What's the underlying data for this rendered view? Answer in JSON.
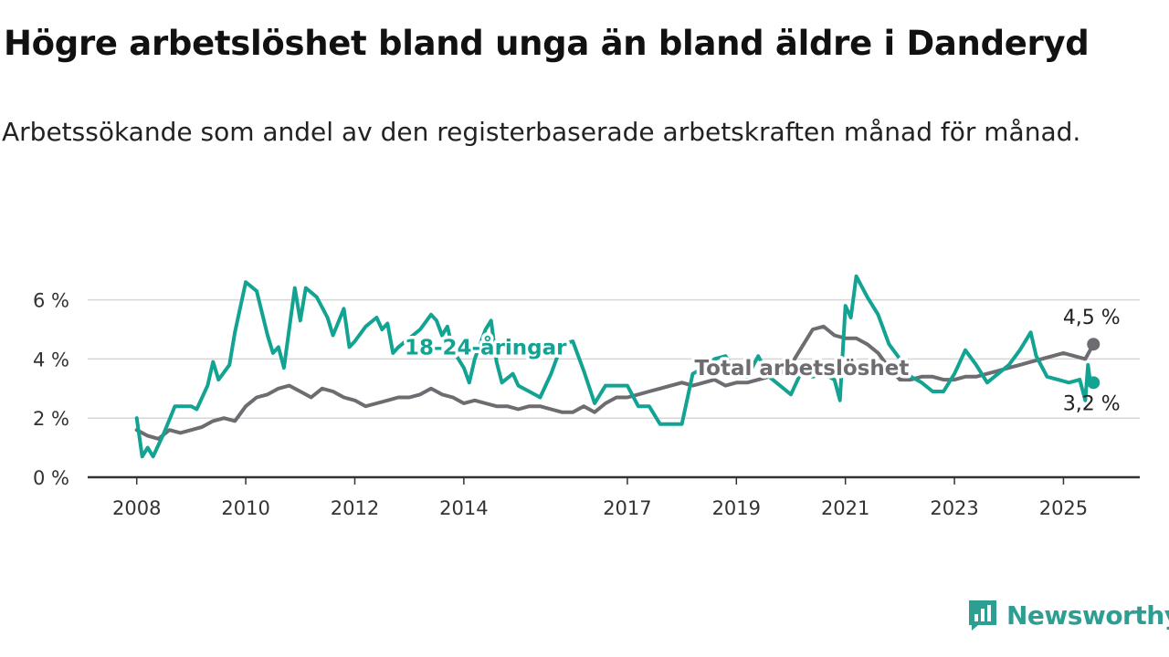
{
  "title": "Högre arbetslöshet bland unga än bland äldre i Danderyd",
  "subtitle": "Arbetssökande som andel av den registerbaserade arbetskraften månad för månad.",
  "brand": {
    "name": "Newsworthy",
    "icon": "newsworthy-logo-icon",
    "color": "#2e9e93"
  },
  "chart_data": {
    "type": "line",
    "title": "Högre arbetslöshet bland unga än bland äldre i Danderyd",
    "subtitle": "Arbetssökande som andel av den registerbaserade arbetskraften månad för månad.",
    "xlabel": "",
    "ylabel": "",
    "x_ticks": [
      {
        "label": "2008",
        "x": 2008.0
      },
      {
        "label": "2010",
        "x": 2010.0
      },
      {
        "label": "2012",
        "x": 2012.0
      },
      {
        "label": "2014",
        "x": 2014.0
      },
      {
        "label": "2017",
        "x": 2017.0
      },
      {
        "label": "2019",
        "x": 2019.0
      },
      {
        "label": "2021",
        "x": 2021.0
      },
      {
        "label": "2023",
        "x": 2023.0
      },
      {
        "label": "2025",
        "x": 2025.0
      }
    ],
    "xlim": [
      2007.1,
      2026.4
    ],
    "y_ticks": [
      {
        "label": "0 %",
        "value": 0
      },
      {
        "label": "2 %",
        "value": 2
      },
      {
        "label": "4 %",
        "value": 4
      },
      {
        "label": "6 %",
        "value": 6
      }
    ],
    "ylim": [
      0,
      7.5
    ],
    "grid": true,
    "series": [
      {
        "name": "Total arbetslöshet",
        "color": "#6e6b71",
        "label_at": [
          2020.2,
          3.7
        ],
        "end_label": "4,5 %",
        "points": [
          [
            2008.0,
            1.6
          ],
          [
            2008.2,
            1.4
          ],
          [
            2008.4,
            1.3
          ],
          [
            2008.6,
            1.6
          ],
          [
            2008.8,
            1.5
          ],
          [
            2009.0,
            1.6
          ],
          [
            2009.2,
            1.7
          ],
          [
            2009.4,
            1.9
          ],
          [
            2009.6,
            2.0
          ],
          [
            2009.8,
            1.9
          ],
          [
            2010.0,
            2.4
          ],
          [
            2010.2,
            2.7
          ],
          [
            2010.4,
            2.8
          ],
          [
            2010.6,
            3.0
          ],
          [
            2010.8,
            3.1
          ],
          [
            2011.0,
            2.9
          ],
          [
            2011.2,
            2.7
          ],
          [
            2011.4,
            3.0
          ],
          [
            2011.6,
            2.9
          ],
          [
            2011.8,
            2.7
          ],
          [
            2012.0,
            2.6
          ],
          [
            2012.2,
            2.4
          ],
          [
            2012.4,
            2.5
          ],
          [
            2012.6,
            2.6
          ],
          [
            2012.8,
            2.7
          ],
          [
            2013.0,
            2.7
          ],
          [
            2013.2,
            2.8
          ],
          [
            2013.4,
            3.0
          ],
          [
            2013.6,
            2.8
          ],
          [
            2013.8,
            2.7
          ],
          [
            2014.0,
            2.5
          ],
          [
            2014.2,
            2.6
          ],
          [
            2014.4,
            2.5
          ],
          [
            2014.6,
            2.4
          ],
          [
            2014.8,
            2.4
          ],
          [
            2015.0,
            2.3
          ],
          [
            2015.2,
            2.4
          ],
          [
            2015.4,
            2.4
          ],
          [
            2015.6,
            2.3
          ],
          [
            2015.8,
            2.2
          ],
          [
            2016.0,
            2.2
          ],
          [
            2016.2,
            2.4
          ],
          [
            2016.4,
            2.2
          ],
          [
            2016.6,
            2.5
          ],
          [
            2016.8,
            2.7
          ],
          [
            2017.0,
            2.7
          ],
          [
            2017.2,
            2.8
          ],
          [
            2017.4,
            2.9
          ],
          [
            2017.6,
            3.0
          ],
          [
            2017.8,
            3.1
          ],
          [
            2018.0,
            3.2
          ],
          [
            2018.2,
            3.1
          ],
          [
            2018.4,
            3.2
          ],
          [
            2018.6,
            3.3
          ],
          [
            2018.8,
            3.1
          ],
          [
            2019.0,
            3.2
          ],
          [
            2019.2,
            3.2
          ],
          [
            2019.4,
            3.3
          ],
          [
            2019.6,
            3.4
          ],
          [
            2019.8,
            3.5
          ],
          [
            2020.0,
            3.8
          ],
          [
            2020.2,
            4.4
          ],
          [
            2020.4,
            5.0
          ],
          [
            2020.6,
            5.1
          ],
          [
            2020.8,
            4.8
          ],
          [
            2021.0,
            4.7
          ],
          [
            2021.2,
            4.7
          ],
          [
            2021.4,
            4.5
          ],
          [
            2021.6,
            4.2
          ],
          [
            2021.8,
            3.7
          ],
          [
            2022.0,
            3.3
          ],
          [
            2022.2,
            3.3
          ],
          [
            2022.4,
            3.4
          ],
          [
            2022.6,
            3.4
          ],
          [
            2022.8,
            3.3
          ],
          [
            2023.0,
            3.3
          ],
          [
            2023.2,
            3.4
          ],
          [
            2023.4,
            3.4
          ],
          [
            2023.6,
            3.5
          ],
          [
            2023.8,
            3.6
          ],
          [
            2024.0,
            3.7
          ],
          [
            2024.2,
            3.8
          ],
          [
            2024.4,
            3.9
          ],
          [
            2024.6,
            4.0
          ],
          [
            2024.8,
            4.1
          ],
          [
            2025.0,
            4.2
          ],
          [
            2025.2,
            4.1
          ],
          [
            2025.4,
            4.0
          ],
          [
            2025.55,
            4.5
          ]
        ]
      },
      {
        "name": "18-24-åringar",
        "color": "#13a392",
        "label_at": [
          2014.4,
          4.4
        ],
        "end_label": "3,2 %",
        "points": [
          [
            2008.0,
            2.0
          ],
          [
            2008.1,
            0.7
          ],
          [
            2008.2,
            1.0
          ],
          [
            2008.3,
            0.7
          ],
          [
            2008.5,
            1.5
          ],
          [
            2008.7,
            2.4
          ],
          [
            2009.0,
            2.4
          ],
          [
            2009.1,
            2.3
          ],
          [
            2009.3,
            3.1
          ],
          [
            2009.4,
            3.9
          ],
          [
            2009.5,
            3.3
          ],
          [
            2009.7,
            3.8
          ],
          [
            2009.8,
            4.9
          ],
          [
            2010.0,
            6.6
          ],
          [
            2010.2,
            6.3
          ],
          [
            2010.4,
            4.8
          ],
          [
            2010.5,
            4.2
          ],
          [
            2010.6,
            4.4
          ],
          [
            2010.7,
            3.7
          ],
          [
            2010.9,
            6.4
          ],
          [
            2011.0,
            5.3
          ],
          [
            2011.1,
            6.4
          ],
          [
            2011.3,
            6.1
          ],
          [
            2011.5,
            5.4
          ],
          [
            2011.6,
            4.8
          ],
          [
            2011.8,
            5.7
          ],
          [
            2011.9,
            4.4
          ],
          [
            2012.0,
            4.6
          ],
          [
            2012.2,
            5.1
          ],
          [
            2012.4,
            5.4
          ],
          [
            2012.5,
            5.0
          ],
          [
            2012.6,
            5.2
          ],
          [
            2012.7,
            4.2
          ],
          [
            2012.8,
            4.4
          ],
          [
            2013.0,
            4.7
          ],
          [
            2013.2,
            5.0
          ],
          [
            2013.4,
            5.5
          ],
          [
            2013.5,
            5.3
          ],
          [
            2013.6,
            4.8
          ],
          [
            2013.7,
            5.1
          ],
          [
            2013.8,
            4.3
          ],
          [
            2014.0,
            3.7
          ],
          [
            2014.1,
            3.2
          ],
          [
            2014.2,
            4.0
          ],
          [
            2014.4,
            5.0
          ],
          [
            2014.5,
            5.3
          ],
          [
            2014.6,
            3.9
          ],
          [
            2014.7,
            3.2
          ],
          [
            2014.9,
            3.5
          ],
          [
            2015.0,
            3.1
          ],
          [
            2015.2,
            2.9
          ],
          [
            2015.4,
            2.7
          ],
          [
            2015.6,
            3.5
          ],
          [
            2015.8,
            4.5
          ],
          [
            2016.0,
            4.6
          ],
          [
            2016.2,
            3.6
          ],
          [
            2016.4,
            2.5
          ],
          [
            2016.6,
            3.1
          ],
          [
            2016.8,
            3.1
          ],
          [
            2017.0,
            3.1
          ],
          [
            2017.2,
            2.4
          ],
          [
            2017.4,
            2.4
          ],
          [
            2017.6,
            1.8
          ],
          [
            2017.8,
            1.8
          ],
          [
            2018.0,
            1.8
          ],
          [
            2018.2,
            3.5
          ],
          [
            2018.4,
            3.7
          ],
          [
            2018.6,
            4.0
          ],
          [
            2018.8,
            4.1
          ],
          [
            2019.0,
            3.5
          ],
          [
            2019.2,
            3.4
          ],
          [
            2019.4,
            4.1
          ],
          [
            2019.6,
            3.4
          ],
          [
            2019.8,
            3.1
          ],
          [
            2020.0,
            2.8
          ],
          [
            2020.2,
            3.6
          ],
          [
            2020.4,
            3.4
          ],
          [
            2020.6,
            3.5
          ],
          [
            2020.8,
            3.3
          ],
          [
            2020.9,
            2.6
          ],
          [
            2021.0,
            5.8
          ],
          [
            2021.1,
            5.4
          ],
          [
            2021.2,
            6.8
          ],
          [
            2021.4,
            6.1
          ],
          [
            2021.6,
            5.5
          ],
          [
            2021.8,
            4.5
          ],
          [
            2022.0,
            4.0
          ],
          [
            2022.2,
            3.4
          ],
          [
            2022.4,
            3.2
          ],
          [
            2022.6,
            2.9
          ],
          [
            2022.8,
            2.9
          ],
          [
            2023.0,
            3.5
          ],
          [
            2023.2,
            4.3
          ],
          [
            2023.4,
            3.8
          ],
          [
            2023.6,
            3.2
          ],
          [
            2023.8,
            3.5
          ],
          [
            2024.0,
            3.8
          ],
          [
            2024.2,
            4.3
          ],
          [
            2024.4,
            4.9
          ],
          [
            2024.5,
            4.1
          ],
          [
            2024.7,
            3.4
          ],
          [
            2024.9,
            3.3
          ],
          [
            2025.1,
            3.2
          ],
          [
            2025.3,
            3.3
          ],
          [
            2025.4,
            2.6
          ],
          [
            2025.45,
            3.8
          ],
          [
            2025.5,
            3.1
          ],
          [
            2025.55,
            3.2
          ]
        ]
      }
    ]
  }
}
